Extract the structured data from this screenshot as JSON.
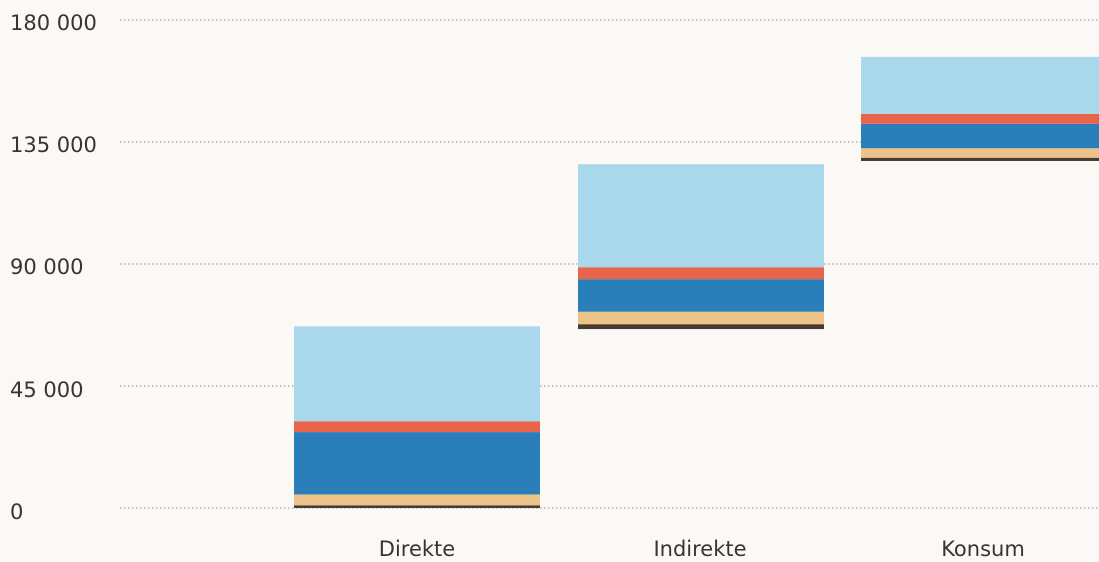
{
  "chart_data": {
    "type": "bar",
    "stacked": true,
    "waterfall": true,
    "categories": [
      "Direkte",
      "Indirekte",
      "Konsum"
    ],
    "yticks": [
      "0",
      "45 000",
      "90 000",
      "135 000",
      "180 000"
    ],
    "ylim": [
      0,
      180000
    ],
    "grid": true,
    "colors": [
      "#4a3b32",
      "#ecc48a",
      "#2a7fba",
      "#e8644a",
      "#a9d7ec"
    ],
    "stacks": [
      {
        "category": "Direkte",
        "base": 0,
        "segments": [
          1000,
          4000,
          23000,
          4000,
          35000
        ]
      },
      {
        "category": "Indirekte",
        "base": 66000,
        "segments": [
          1800,
          4600,
          12000,
          4400,
          38000
        ]
      },
      {
        "category": "Konsum",
        "base": 128000,
        "segments": [
          1200,
          3500,
          9000,
          3700,
          21000
        ]
      }
    ]
  }
}
